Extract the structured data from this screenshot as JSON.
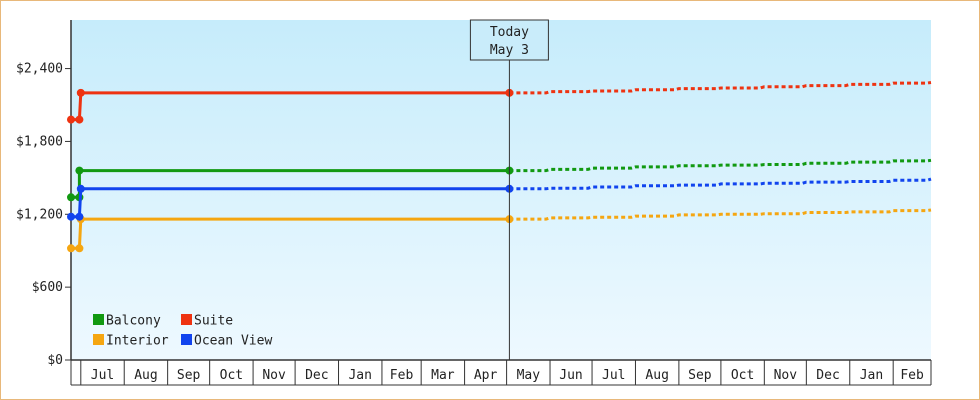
{
  "chart_data": {
    "type": "line",
    "title": "",
    "xlabel": "",
    "ylabel": "",
    "ylim": [
      0,
      2800
    ],
    "yticks": [
      {
        "value": 0,
        "label": "$0"
      },
      {
        "value": 600,
        "label": "$600"
      },
      {
        "value": 1200,
        "label": "$1,200"
      },
      {
        "value": 1800,
        "label": "$1,800"
      },
      {
        "value": 2400,
        "label": "$2,400"
      }
    ],
    "month_labels": [
      "Jul",
      "Aug",
      "Sep",
      "Oct",
      "Nov",
      "Dec",
      "Jan",
      "Feb",
      "Mar",
      "Apr",
      "May",
      "Jun",
      "Jul",
      "Aug",
      "Sep",
      "Oct",
      "Nov",
      "Dec",
      "Jan",
      "Feb"
    ],
    "month_starts": [
      "2024-06-24",
      "2024-07-01",
      "2024-08-01",
      "2024-09-01",
      "2024-10-01",
      "2024-11-01",
      "2024-12-01",
      "2025-01-01",
      "2025-02-01",
      "2025-03-01",
      "2025-04-01",
      "2025-05-01",
      "2025-06-01",
      "2025-07-01",
      "2025-08-01",
      "2025-09-01",
      "2025-10-01",
      "2025-11-01",
      "2025-12-01",
      "2026-01-01",
      "2026-02-01",
      "2026-02-28"
    ],
    "today": {
      "date": "2025-05-03",
      "label_line1": "Today",
      "label_line2": "May 3"
    },
    "legend": {
      "placement": "bottom-left"
    },
    "series": [
      {
        "name": "Balcony",
        "color": "#119911",
        "history": [
          [
            "2024-06-24",
            1340
          ],
          [
            "2024-06-30",
            1340
          ],
          [
            "2024-06-30",
            1560
          ],
          [
            "2025-05-03",
            1560
          ]
        ],
        "forecast": [
          [
            "2025-05-03",
            1560
          ],
          [
            "2025-06-01",
            1570
          ],
          [
            "2025-07-01",
            1580
          ],
          [
            "2025-08-01",
            1590
          ],
          [
            "2025-09-01",
            1600
          ],
          [
            "2025-10-01",
            1605
          ],
          [
            "2025-11-01",
            1610
          ],
          [
            "2025-12-01",
            1620
          ],
          [
            "2026-01-01",
            1630
          ],
          [
            "2026-02-01",
            1640
          ],
          [
            "2026-02-28",
            1645
          ]
        ]
      },
      {
        "name": "Suite",
        "color": "#ee3311",
        "history": [
          [
            "2024-06-24",
            1980
          ],
          [
            "2024-06-30",
            1980
          ],
          [
            "2024-07-01",
            2200
          ],
          [
            "2025-05-03",
            2200
          ]
        ],
        "forecast": [
          [
            "2025-05-03",
            2200
          ],
          [
            "2025-06-01",
            2210
          ],
          [
            "2025-07-01",
            2215
          ],
          [
            "2025-08-01",
            2225
          ],
          [
            "2025-09-01",
            2235
          ],
          [
            "2025-10-01",
            2240
          ],
          [
            "2025-11-01",
            2250
          ],
          [
            "2025-12-01",
            2260
          ],
          [
            "2026-01-01",
            2270
          ],
          [
            "2026-02-01",
            2280
          ],
          [
            "2026-02-28",
            2285
          ]
        ]
      },
      {
        "name": "Interior",
        "color": "#f5a611",
        "history": [
          [
            "2024-06-24",
            920
          ],
          [
            "2024-06-30",
            920
          ],
          [
            "2024-07-01",
            1160
          ],
          [
            "2025-05-03",
            1160
          ]
        ],
        "forecast": [
          [
            "2025-05-03",
            1160
          ],
          [
            "2025-06-01",
            1170
          ],
          [
            "2025-07-01",
            1175
          ],
          [
            "2025-08-01",
            1185
          ],
          [
            "2025-09-01",
            1195
          ],
          [
            "2025-10-01",
            1200
          ],
          [
            "2025-11-01",
            1205
          ],
          [
            "2025-12-01",
            1215
          ],
          [
            "2026-01-01",
            1220
          ],
          [
            "2026-02-01",
            1230
          ],
          [
            "2026-02-28",
            1235
          ]
        ]
      },
      {
        "name": "Ocean View",
        "color": "#1144ee",
        "history": [
          [
            "2024-06-24",
            1180
          ],
          [
            "2024-06-30",
            1180
          ],
          [
            "2024-07-01",
            1410
          ],
          [
            "2025-05-03",
            1410
          ]
        ],
        "forecast": [
          [
            "2025-05-03",
            1410
          ],
          [
            "2025-06-01",
            1415
          ],
          [
            "2025-07-01",
            1425
          ],
          [
            "2025-08-01",
            1435
          ],
          [
            "2025-09-01",
            1440
          ],
          [
            "2025-10-01",
            1450
          ],
          [
            "2025-11-01",
            1455
          ],
          [
            "2025-12-01",
            1465
          ],
          [
            "2026-01-01",
            1470
          ],
          [
            "2026-02-01",
            1480
          ],
          [
            "2026-02-28",
            1490
          ]
        ]
      }
    ]
  }
}
